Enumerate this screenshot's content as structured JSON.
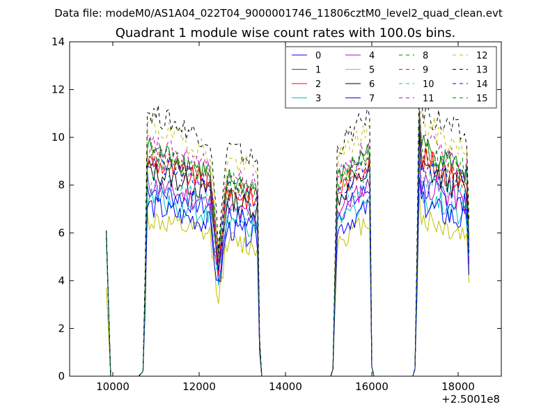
{
  "suptitle": "Data file: modeM0/AS1A04_022T04_9000001746_11806cztM0_level2_quad_clean.evt",
  "chart_data": {
    "type": "line",
    "title": "Quadrant 1 module wise count rates with 100.0s bins.",
    "xlabel": "",
    "ylabel": "",
    "x_offset_label": "+2.5001e8",
    "xlim": [
      9000,
      19000
    ],
    "ylim": [
      0,
      14
    ],
    "xticks": [
      10000,
      12000,
      14000,
      16000,
      18000
    ],
    "yticks": [
      0,
      2,
      4,
      6,
      8,
      10,
      12,
      14
    ],
    "xtick_labels": [
      "10000",
      "12000",
      "14000",
      "16000",
      "18000"
    ],
    "ytick_labels": [
      "0",
      "2",
      "4",
      "6",
      "8",
      "10",
      "12",
      "14"
    ],
    "grid": false,
    "legend_position": "top-right",
    "legend_columns": 4,
    "colors": {
      "blue": "#0000ff",
      "green": "#008000",
      "red": "#ff0000",
      "cyan": "#00bfbf",
      "magenta": "#bf00bf",
      "olive": "#bfbf00",
      "black": "#000000"
    },
    "series": [
      {
        "name": "0",
        "color": "#0000ff",
        "style": "solid",
        "scale": 0.84,
        "start": 6.0
      },
      {
        "name": "1",
        "color": "#008000",
        "style": "solid",
        "scale": 1.02,
        "start": 6.1
      },
      {
        "name": "2",
        "color": "#ff0000",
        "style": "solid",
        "scale": 0.96,
        "start": 6.0
      },
      {
        "name": "3",
        "color": "#00bfbf",
        "style": "solid",
        "scale": 0.8,
        "start": 5.9
      },
      {
        "name": "4",
        "color": "#bf00bf",
        "style": "solid",
        "scale": 0.86,
        "start": 6.0
      },
      {
        "name": "5",
        "color": "#bfbf00",
        "style": "solid",
        "scale": 0.7,
        "start": 3.7
      },
      {
        "name": "6",
        "color": "#000000",
        "style": "solid",
        "scale": 0.92,
        "start": 6.0
      },
      {
        "name": "7",
        "color": "#0000ff",
        "style": "solid",
        "scale": 0.76,
        "start": 5.8
      },
      {
        "name": "8",
        "color": "#008000",
        "style": "dashed",
        "scale": 1.0,
        "start": 6.0
      },
      {
        "name": "9",
        "color": "#ff0000",
        "style": "dashed",
        "scale": 0.98,
        "start": 6.0
      },
      {
        "name": "10",
        "color": "#00bfbf",
        "style": "dashed",
        "scale": 0.88,
        "start": 5.9
      },
      {
        "name": "11",
        "color": "#bf00bf",
        "style": "dashed",
        "scale": 1.04,
        "start": 6.0
      },
      {
        "name": "12",
        "color": "#bfbf00",
        "style": "dashed",
        "scale": 1.12,
        "start": 6.0
      },
      {
        "name": "13",
        "color": "#000000",
        "style": "dashed",
        "scale": 1.18,
        "start": 6.1
      },
      {
        "name": "14",
        "color": "#0000ff",
        "style": "dashed",
        "scale": 0.96,
        "start": 6.0
      },
      {
        "name": "15",
        "color": "#008000",
        "style": "dashed",
        "scale": 1.0,
        "start": 6.0
      }
    ],
    "segments": [
      {
        "x_start": 9850,
        "x_end": 9950,
        "level": 6.0
      },
      {
        "x_start": 10050,
        "x_end": 10600,
        "level": 0.0
      },
      {
        "x_start": 10700,
        "x_end": 13350,
        "level": 8.4,
        "dip_x": 12450,
        "dip_level": 4.0
      },
      {
        "x_start": 13450,
        "x_end": 15050,
        "level": 0.0
      },
      {
        "x_start": 15150,
        "x_end": 15950,
        "level": 8.5
      },
      {
        "x_start": 16050,
        "x_end": 16950,
        "level": 0.0
      },
      {
        "x_start": 17050,
        "x_end": 18250,
        "level": 9.0
      }
    ]
  }
}
